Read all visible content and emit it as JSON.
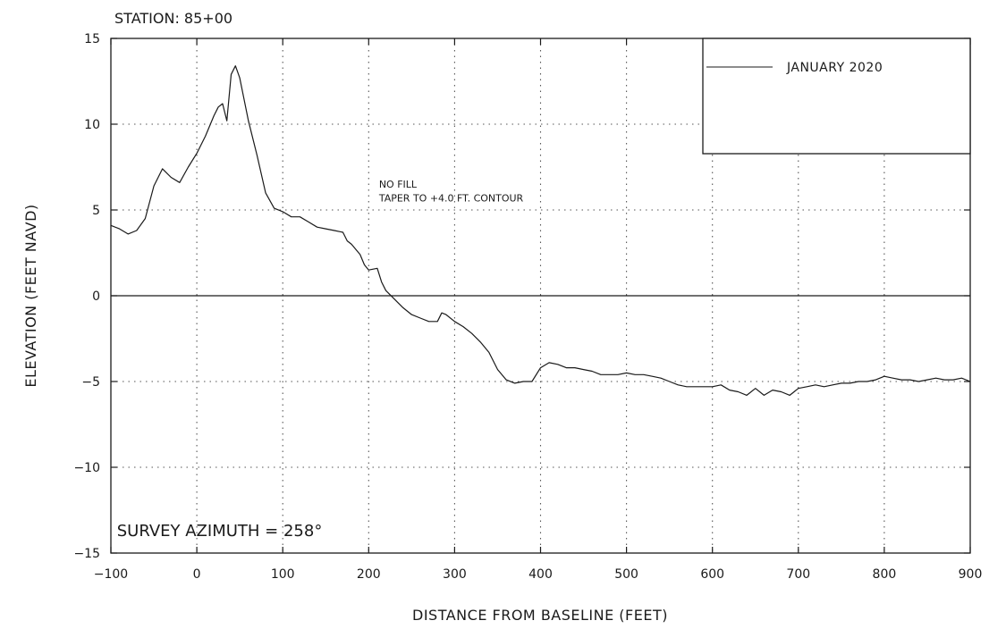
{
  "chart_data": {
    "type": "line",
    "title": "STATION: 85+00",
    "xlabel": "DISTANCE FROM BASELINE (FEET)",
    "ylabel": "ELEVATION (FEET NAVD)",
    "xlim": [
      -100,
      900
    ],
    "ylim": [
      -15,
      15
    ],
    "x_ticks": [
      -100,
      0,
      100,
      200,
      300,
      400,
      500,
      600,
      700,
      800,
      900
    ],
    "y_ticks": [
      -15,
      -10,
      -5,
      0,
      5,
      10,
      15
    ],
    "x_tick_labels": [
      "−100",
      "0",
      "100",
      "200",
      "300",
      "400",
      "500",
      "600",
      "700",
      "800",
      "900"
    ],
    "y_tick_labels": [
      "−15",
      "−10",
      "−5",
      "0",
      "5",
      "10",
      "15"
    ],
    "grid": true,
    "legend_position": "top-right",
    "series": [
      {
        "name": "JANUARY 2020",
        "color": "#1a1a1a",
        "x": [
          -100,
          -90,
          -80,
          -70,
          -60,
          -50,
          -40,
          -30,
          -20,
          -10,
          0,
          10,
          20,
          25,
          30,
          35,
          40,
          45,
          50,
          60,
          70,
          80,
          90,
          100,
          110,
          120,
          130,
          140,
          150,
          160,
          170,
          175,
          180,
          190,
          195,
          200,
          210,
          215,
          220,
          230,
          240,
          250,
          260,
          270,
          280,
          285,
          290,
          300,
          310,
          320,
          330,
          340,
          350,
          360,
          370,
          380,
          390,
          400,
          410,
          420,
          430,
          440,
          450,
          460,
          470,
          480,
          490,
          500,
          510,
          520,
          530,
          540,
          550,
          560,
          570,
          580,
          590,
          600,
          610,
          620,
          630,
          640,
          650,
          660,
          670,
          680,
          690,
          700,
          710,
          720,
          730,
          740,
          750,
          760,
          770,
          780,
          790,
          800,
          810,
          820,
          830,
          840,
          850,
          860,
          870,
          880,
          890,
          900
        ],
        "y": [
          4.1,
          3.9,
          3.6,
          3.8,
          4.5,
          6.4,
          7.4,
          6.9,
          6.6,
          7.5,
          8.3,
          9.3,
          10.5,
          11.0,
          11.2,
          10.2,
          12.9,
          13.4,
          12.7,
          10.2,
          8.2,
          6.0,
          5.1,
          4.9,
          4.6,
          4.6,
          4.3,
          4.0,
          3.9,
          3.8,
          3.7,
          3.2,
          3.0,
          2.4,
          1.8,
          1.5,
          1.6,
          0.8,
          0.3,
          -0.2,
          -0.7,
          -1.1,
          -1.3,
          -1.5,
          -1.5,
          -1.0,
          -1.1,
          -1.5,
          -1.8,
          -2.2,
          -2.7,
          -3.3,
          -4.3,
          -4.9,
          -5.1,
          -5.0,
          -5.0,
          -4.2,
          -3.9,
          -4.0,
          -4.2,
          -4.2,
          -4.3,
          -4.4,
          -4.6,
          -4.6,
          -4.6,
          -4.5,
          -4.6,
          -4.6,
          -4.7,
          -4.8,
          -5.0,
          -5.2,
          -5.3,
          -5.3,
          -5.3,
          -5.3,
          -5.2,
          -5.5,
          -5.6,
          -5.8,
          -5.4,
          -5.8,
          -5.5,
          -5.6,
          -5.8,
          -5.4,
          -5.3,
          -5.2,
          -5.3,
          -5.2,
          -5.1,
          -5.1,
          -5.0,
          -5.0,
          -4.9,
          -4.7,
          -4.8,
          -4.9,
          -4.9,
          -5.0,
          -4.9,
          -4.8,
          -4.9,
          -4.9,
          -4.8,
          -5.0
        ]
      }
    ],
    "annotations": [
      {
        "id": "no-fill",
        "text": "NO FILL",
        "x": 212,
        "y": 6.3
      },
      {
        "id": "taper",
        "text": "TAPER TO +4.0 FT. CONTOUR",
        "x": 212,
        "y": 5.5
      },
      {
        "id": "azimuth",
        "text": "SURVEY AZIMUTH = 258°",
        "x": -93,
        "y": -14
      }
    ]
  }
}
